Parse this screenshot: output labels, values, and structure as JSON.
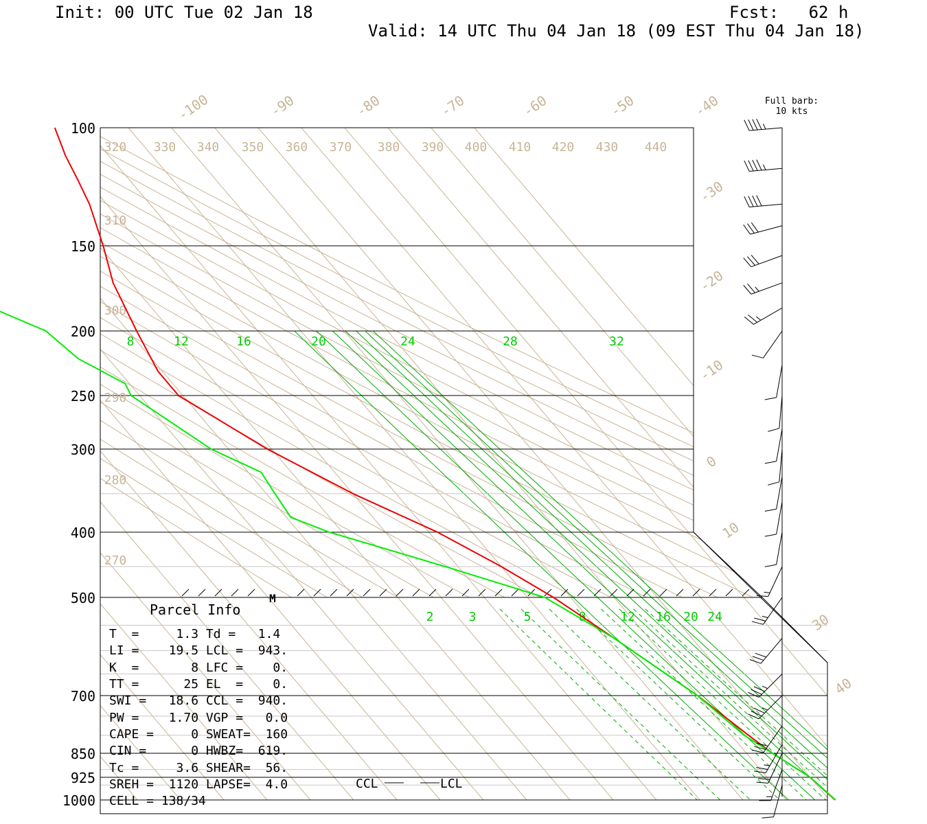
{
  "header": {
    "init": "Init: 00 UTC Tue 02 Jan 18",
    "fcst": "Fcst:   62 h",
    "valid": "Valid: 14 UTC Thu 04 Jan 18 (09 EST Thu 04 Jan 18)"
  },
  "barb_legend": {
    "line1": "Full barb:",
    "line2": "10 kts"
  },
  "colors": {
    "temperature": "#ee0000",
    "dewpoint": "#00ee00",
    "mixing_ratio": "#00aa00",
    "isotherm": "#c8b496",
    "isobar": "#000000"
  },
  "chart_data": {
    "type": "line",
    "diagram": "skew-t log-p",
    "y_axis_pressure_levels": [
      "100",
      "150",
      "200",
      "250",
      "300",
      "400",
      "500",
      "700",
      "850",
      "925",
      "1000"
    ],
    "pressure_range": [
      100,
      1000
    ],
    "isotherm_labels": [
      "-100",
      "-90",
      "-80",
      "-70",
      "-60",
      "-50",
      "-40",
      "-30",
      "-20",
      "-10",
      "0",
      "10",
      "30",
      "40"
    ],
    "theta_labels": [
      "320",
      "330",
      "340",
      "350",
      "360",
      "370",
      "380",
      "390",
      "400",
      "410",
      "420",
      "430",
      "440",
      "310",
      "300",
      "290",
      "280",
      "270"
    ],
    "mixing_ratio_labels_upper": [
      "8",
      "12",
      "16",
      "20",
      "24",
      "28",
      "32"
    ],
    "mixing_ratio_labels_lower": [
      "2",
      "3",
      "5",
      "8",
      "12",
      "16",
      "20",
      "24"
    ],
    "temperature_profile": [
      {
        "p": 100,
        "t": -47
      },
      {
        "p": 110,
        "t": -50
      },
      {
        "p": 120,
        "t": -52
      },
      {
        "p": 130,
        "t": -54
      },
      {
        "p": 150,
        "t": -59
      },
      {
        "p": 170,
        "t": -64
      },
      {
        "p": 200,
        "t": -68
      },
      {
        "p": 230,
        "t": -71
      },
      {
        "p": 250,
        "t": -71
      },
      {
        "p": 300,
        "t": -61
      },
      {
        "p": 350,
        "t": -50
      },
      {
        "p": 400,
        "t": -38
      },
      {
        "p": 450,
        "t": -30
      },
      {
        "p": 500,
        "t": -24
      },
      {
        "p": 575,
        "t": -18
      },
      {
        "p": 700,
        "t": -10
      },
      {
        "p": 800,
        "t": -6
      },
      {
        "p": 850,
        "t": -4
      },
      {
        "p": 925,
        "t": 0
      },
      {
        "p": 1000,
        "t": 1.3
      }
    ],
    "dewpoint_profile": [
      {
        "p": 100,
        "t": -67
      },
      {
        "p": 110,
        "t": -73
      },
      {
        "p": 120,
        "t": -81
      },
      {
        "p": 130,
        "t": -89
      },
      {
        "p": 145,
        "t": -100
      },
      {
        "p": 155,
        "t": -104
      },
      {
        "p": 185,
        "t": -97
      },
      {
        "p": 200,
        "t": -89
      },
      {
        "p": 220,
        "t": -87
      },
      {
        "p": 240,
        "t": -81
      },
      {
        "p": 250,
        "t": -82
      },
      {
        "p": 300,
        "t": -74
      },
      {
        "p": 325,
        "t": -67
      },
      {
        "p": 350,
        "t": -68
      },
      {
        "p": 380,
        "t": -69
      },
      {
        "p": 400,
        "t": -63
      },
      {
        "p": 450,
        "t": -43
      },
      {
        "p": 500,
        "t": -26
      },
      {
        "p": 575,
        "t": -18
      },
      {
        "p": 700,
        "t": -10
      },
      {
        "p": 800,
        "t": -7
      },
      {
        "p": 850,
        "t": -4
      },
      {
        "p": 925,
        "t": 0
      },
      {
        "p": 1000,
        "t": 1.4
      }
    ],
    "level_markers": {
      "ccl": "CCL",
      "lcl": "LCL",
      "m": "M"
    },
    "parcel_info": {
      "title": "Parcel Info",
      "rows": [
        "T  =     1.3 Td =   1.4",
        "LI =    19.5 LCL =  943.",
        "K  =       8 LFC =    0.",
        "TT =      25 EL  =    0.",
        "SWI =   18.6 CCL =  940.",
        "PW =    1.70 VGP =   0.0",
        "CAPE =     0 SWEAT=  160",
        "CIN =      0 HWBZ=  619.",
        "Tc =     3.6 SHEAR=  56.",
        "SREH =  1120 LAPSE=  4.0",
        "CELL = 138/34"
      ]
    },
    "wind_profile": [
      {
        "p": 100,
        "speed": 45,
        "dir": 265
      },
      {
        "p": 115,
        "speed": 45,
        "dir": 265
      },
      {
        "p": 130,
        "speed": 40,
        "dir": 265
      },
      {
        "p": 140,
        "speed": 30,
        "dir": 255
      },
      {
        "p": 155,
        "speed": 30,
        "dir": 250
      },
      {
        "p": 170,
        "speed": 25,
        "dir": 250
      },
      {
        "p": 185,
        "speed": 25,
        "dir": 240
      },
      {
        "p": 200,
        "speed": 10,
        "dir": 215
      },
      {
        "p": 225,
        "speed": 10,
        "dir": 190
      },
      {
        "p": 250,
        "speed": 10,
        "dir": 185
      },
      {
        "p": 280,
        "speed": 10,
        "dir": 190
      },
      {
        "p": 300,
        "speed": 10,
        "dir": 185
      },
      {
        "p": 330,
        "speed": 10,
        "dir": 190
      },
      {
        "p": 360,
        "speed": 10,
        "dir": 190
      },
      {
        "p": 400,
        "speed": 10,
        "dir": 190
      },
      {
        "p": 450,
        "speed": 15,
        "dir": 205
      },
      {
        "p": 500,
        "speed": 25,
        "dir": 215
      },
      {
        "p": 575,
        "speed": 30,
        "dir": 220
      },
      {
        "p": 650,
        "speed": 35,
        "dir": 225
      },
      {
        "p": 700,
        "speed": 35,
        "dir": 225
      },
      {
        "p": 775,
        "speed": 30,
        "dir": 215
      },
      {
        "p": 825,
        "speed": 25,
        "dir": 210
      },
      {
        "p": 850,
        "speed": 20,
        "dir": 205
      },
      {
        "p": 900,
        "speed": 15,
        "dir": 200
      },
      {
        "p": 950,
        "speed": 10,
        "dir": 195
      }
    ]
  }
}
